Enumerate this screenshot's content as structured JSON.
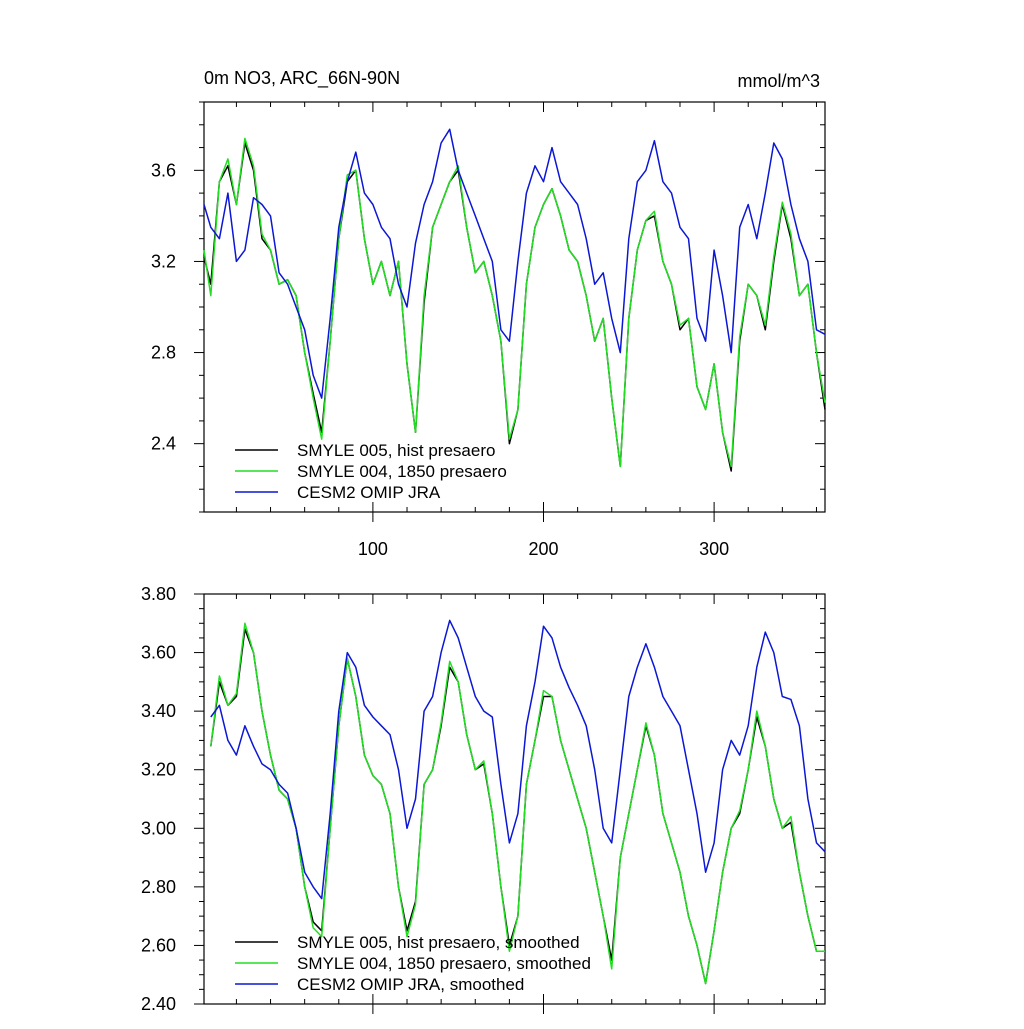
{
  "chart_data": [
    {
      "type": "line",
      "title": "0m NO3, ARC_66N-90N",
      "units": "mmol/m^3",
      "xlabel": "",
      "ylabel": "",
      "xlim": [
        1,
        365
      ],
      "ylim": [
        2.1,
        3.9
      ],
      "xticks": [
        100,
        200,
        300
      ],
      "yticks": [
        2.4,
        2.8,
        3.2,
        3.6
      ],
      "ytick_labels": [
        "2.4",
        "2.8",
        "3.2",
        "3.6"
      ],
      "legend_position": "bottom-left",
      "x": [
        1,
        5,
        10,
        15,
        20,
        25,
        30,
        35,
        40,
        45,
        50,
        55,
        60,
        65,
        70,
        75,
        80,
        85,
        90,
        95,
        100,
        105,
        110,
        115,
        120,
        125,
        130,
        135,
        140,
        145,
        150,
        155,
        160,
        165,
        170,
        175,
        180,
        185,
        190,
        195,
        200,
        205,
        210,
        215,
        220,
        225,
        230,
        235,
        240,
        245,
        250,
        255,
        260,
        265,
        270,
        275,
        280,
        285,
        290,
        295,
        300,
        305,
        310,
        315,
        320,
        325,
        330,
        335,
        340,
        345,
        350,
        355,
        360,
        365
      ],
      "series": [
        {
          "name": "SMYLE 005, hist presaero",
          "color": "#000000",
          "values": [
            3.22,
            3.1,
            3.55,
            3.62,
            3.45,
            3.72,
            3.6,
            3.3,
            3.25,
            3.1,
            3.12,
            3.05,
            2.8,
            2.62,
            2.45,
            2.85,
            3.3,
            3.55,
            3.6,
            3.3,
            3.1,
            3.2,
            3.05,
            3.2,
            2.75,
            2.45,
            3.02,
            3.35,
            3.45,
            3.55,
            3.6,
            3.35,
            3.15,
            3.2,
            3.05,
            2.85,
            2.4,
            2.55,
            3.1,
            3.35,
            3.45,
            3.52,
            3.4,
            3.25,
            3.2,
            3.05,
            2.85,
            2.95,
            2.6,
            2.3,
            2.95,
            3.25,
            3.38,
            3.4,
            3.2,
            3.1,
            2.9,
            2.95,
            2.65,
            2.55,
            2.75,
            2.45,
            2.28,
            2.85,
            3.1,
            3.05,
            2.9,
            3.2,
            3.45,
            3.3,
            3.05,
            3.1,
            2.8,
            2.55
          ]
        },
        {
          "name": "SMYLE 004, 1850 presaero",
          "color": "#22dd22",
          "values": [
            3.25,
            3.05,
            3.55,
            3.65,
            3.45,
            3.74,
            3.62,
            3.32,
            3.25,
            3.1,
            3.12,
            3.05,
            2.8,
            2.6,
            2.42,
            2.85,
            3.3,
            3.58,
            3.6,
            3.3,
            3.1,
            3.2,
            3.05,
            3.2,
            2.75,
            2.45,
            3.05,
            3.35,
            3.45,
            3.55,
            3.62,
            3.35,
            3.15,
            3.2,
            3.05,
            2.85,
            2.42,
            2.55,
            3.1,
            3.35,
            3.45,
            3.52,
            3.4,
            3.25,
            3.2,
            3.05,
            2.85,
            2.95,
            2.6,
            2.3,
            2.95,
            3.25,
            3.38,
            3.42,
            3.2,
            3.1,
            2.92,
            2.95,
            2.65,
            2.55,
            2.75,
            2.45,
            2.3,
            2.87,
            3.1,
            3.05,
            2.92,
            3.22,
            3.46,
            3.32,
            3.05,
            3.1,
            2.8,
            2.58
          ]
        },
        {
          "name": "CESM2 OMIP JRA",
          "color": "#0b17d4",
          "values": [
            3.45,
            3.35,
            3.3,
            3.5,
            3.2,
            3.25,
            3.48,
            3.45,
            3.4,
            3.15,
            3.1,
            3.0,
            2.9,
            2.7,
            2.6,
            2.95,
            3.35,
            3.55,
            3.68,
            3.5,
            3.45,
            3.35,
            3.3,
            3.1,
            3.0,
            3.28,
            3.45,
            3.55,
            3.72,
            3.78,
            3.6,
            3.5,
            3.4,
            3.3,
            3.2,
            2.9,
            2.85,
            3.2,
            3.5,
            3.62,
            3.55,
            3.7,
            3.55,
            3.5,
            3.45,
            3.3,
            3.1,
            3.15,
            2.95,
            2.8,
            3.3,
            3.55,
            3.6,
            3.73,
            3.55,
            3.5,
            3.35,
            3.3,
            2.95,
            2.85,
            3.25,
            3.05,
            2.8,
            3.35,
            3.45,
            3.3,
            3.5,
            3.72,
            3.65,
            3.45,
            3.3,
            3.2,
            2.9,
            2.88
          ]
        }
      ]
    },
    {
      "type": "line",
      "title": "",
      "xlabel": "",
      "ylabel": "",
      "xlim": [
        1,
        365
      ],
      "ylim": [
        2.4,
        3.8
      ],
      "xticks": [
        100,
        200,
        300
      ],
      "yticks": [
        2.4,
        2.6,
        2.8,
        3.0,
        3.2,
        3.4,
        3.6,
        3.8
      ],
      "ytick_labels": [
        "2.40",
        "2.60",
        "2.80",
        "3.00",
        "3.20",
        "3.40",
        "3.60",
        "3.80"
      ],
      "legend_position": "bottom-left",
      "x": [
        5,
        10,
        15,
        20,
        25,
        30,
        35,
        40,
        45,
        50,
        55,
        60,
        65,
        70,
        75,
        80,
        85,
        90,
        95,
        100,
        105,
        110,
        115,
        120,
        125,
        130,
        135,
        140,
        145,
        150,
        155,
        160,
        165,
        170,
        175,
        180,
        185,
        190,
        195,
        200,
        205,
        210,
        215,
        220,
        225,
        230,
        235,
        240,
        245,
        250,
        255,
        260,
        265,
        270,
        275,
        280,
        285,
        290,
        295,
        300,
        305,
        310,
        315,
        320,
        325,
        330,
        335,
        340,
        345,
        350,
        355,
        360,
        365
      ],
      "series": [
        {
          "name": "SMYLE 005, hist presaero, smoothed",
          "color": "#000000",
          "values": [
            3.28,
            3.5,
            3.42,
            3.45,
            3.68,
            3.6,
            3.4,
            3.25,
            3.13,
            3.1,
            3.0,
            2.8,
            2.68,
            2.65,
            3.0,
            3.35,
            3.58,
            3.45,
            3.25,
            3.18,
            3.15,
            3.05,
            2.8,
            2.65,
            2.75,
            3.15,
            3.2,
            3.35,
            3.55,
            3.5,
            3.32,
            3.2,
            3.22,
            3.05,
            2.8,
            2.6,
            2.7,
            3.15,
            3.3,
            3.45,
            3.45,
            3.3,
            3.2,
            3.1,
            3.0,
            2.85,
            2.7,
            2.55,
            2.9,
            3.05,
            3.2,
            3.35,
            3.25,
            3.05,
            2.95,
            2.85,
            2.7,
            2.6,
            2.47,
            2.65,
            2.85,
            3.0,
            3.05,
            3.2,
            3.38,
            3.28,
            3.1,
            3.0,
            3.02,
            2.85,
            2.7,
            2.58,
            2.58
          ]
        },
        {
          "name": "SMYLE 004, 1850 presaero, smoothed",
          "color": "#22dd22",
          "values": [
            3.28,
            3.52,
            3.42,
            3.46,
            3.7,
            3.6,
            3.4,
            3.25,
            3.13,
            3.1,
            3.0,
            2.8,
            2.66,
            2.63,
            3.0,
            3.35,
            3.58,
            3.45,
            3.25,
            3.18,
            3.15,
            3.05,
            2.8,
            2.63,
            2.74,
            3.15,
            3.2,
            3.36,
            3.57,
            3.5,
            3.32,
            3.2,
            3.23,
            3.05,
            2.8,
            2.58,
            2.7,
            3.15,
            3.3,
            3.47,
            3.45,
            3.3,
            3.2,
            3.1,
            3.0,
            2.85,
            2.7,
            2.52,
            2.9,
            3.05,
            3.2,
            3.36,
            3.25,
            3.05,
            2.95,
            2.85,
            2.7,
            2.6,
            2.47,
            2.65,
            2.85,
            3.0,
            3.06,
            3.2,
            3.4,
            3.28,
            3.1,
            3.0,
            3.04,
            2.85,
            2.7,
            2.58,
            2.58
          ]
        },
        {
          "name": "CESM2 OMIP JRA, smoothed",
          "color": "#0b17d4",
          "values": [
            3.38,
            3.42,
            3.3,
            3.25,
            3.35,
            3.28,
            3.22,
            3.2,
            3.15,
            3.12,
            3.0,
            2.85,
            2.8,
            2.76,
            3.05,
            3.4,
            3.6,
            3.55,
            3.42,
            3.38,
            3.35,
            3.32,
            3.2,
            3.0,
            3.1,
            3.4,
            3.45,
            3.6,
            3.71,
            3.65,
            3.55,
            3.45,
            3.4,
            3.38,
            3.15,
            2.95,
            3.05,
            3.35,
            3.5,
            3.69,
            3.65,
            3.55,
            3.48,
            3.42,
            3.35,
            3.2,
            3.0,
            2.95,
            3.2,
            3.45,
            3.55,
            3.63,
            3.55,
            3.45,
            3.4,
            3.35,
            3.2,
            3.05,
            2.85,
            2.95,
            3.2,
            3.3,
            3.25,
            3.35,
            3.55,
            3.67,
            3.6,
            3.45,
            3.44,
            3.35,
            3.1,
            2.95,
            2.92
          ]
        }
      ]
    }
  ]
}
